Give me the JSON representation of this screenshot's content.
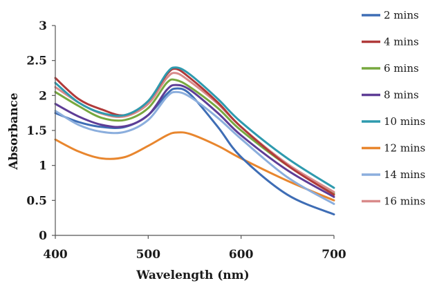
{
  "chart_data": {
    "type": "line",
    "title": "",
    "xlabel": "Wavelength (nm)",
    "ylabel": "Absorbance",
    "xlim": [
      400,
      700
    ],
    "ylim": [
      0,
      3
    ],
    "xticks": [
      "400",
      "500",
      "600",
      "700"
    ],
    "yticks": [
      "0",
      "0.5",
      "1",
      "1.5",
      "2",
      "2.5",
      "3"
    ],
    "grid": false,
    "legend_position": "right",
    "x": [
      400,
      425,
      450,
      475,
      500,
      520,
      530,
      545,
      575,
      600,
      650,
      700
    ],
    "series": [
      {
        "name": "2 mins",
        "color": "#3E6DB5",
        "values": [
          1.75,
          1.62,
          1.55,
          1.55,
          1.72,
          2.02,
          2.1,
          2.02,
          1.55,
          1.12,
          0.58,
          0.3
        ]
      },
      {
        "name": "4 mins",
        "color": "#B03A3A",
        "values": [
          2.25,
          1.95,
          1.8,
          1.72,
          1.92,
          2.3,
          2.38,
          2.25,
          1.9,
          1.55,
          1.0,
          0.58
        ]
      },
      {
        "name": "6 mins",
        "color": "#77A83E",
        "values": [
          2.05,
          1.85,
          1.68,
          1.65,
          1.82,
          2.18,
          2.22,
          2.12,
          1.82,
          1.5,
          1.0,
          0.6
        ]
      },
      {
        "name": "8 mins",
        "color": "#5E3D96",
        "values": [
          1.88,
          1.7,
          1.58,
          1.56,
          1.72,
          2.08,
          2.15,
          2.08,
          1.75,
          1.43,
          0.93,
          0.55
        ]
      },
      {
        "name": "10 mins",
        "color": "#2E9AAE",
        "values": [
          2.18,
          1.9,
          1.75,
          1.72,
          1.92,
          2.32,
          2.4,
          2.3,
          1.95,
          1.62,
          1.1,
          0.68
        ]
      },
      {
        "name": "12 mins",
        "color": "#E8862E",
        "values": [
          1.37,
          1.2,
          1.1,
          1.12,
          1.28,
          1.43,
          1.47,
          1.45,
          1.28,
          1.1,
          0.78,
          0.5
        ]
      },
      {
        "name": "14 mins",
        "color": "#8BAEDD",
        "values": [
          1.78,
          1.58,
          1.48,
          1.48,
          1.65,
          1.98,
          2.05,
          1.98,
          1.68,
          1.38,
          0.83,
          0.45
        ]
      },
      {
        "name": "16 mins",
        "color": "#D98A8A",
        "values": [
          2.12,
          1.9,
          1.74,
          1.7,
          1.88,
          2.25,
          2.32,
          2.2,
          1.88,
          1.55,
          1.02,
          0.62
        ]
      }
    ]
  }
}
